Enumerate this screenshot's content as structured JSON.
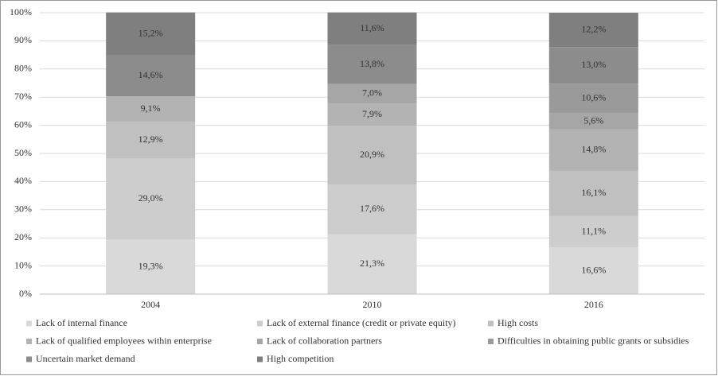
{
  "chart_data": {
    "type": "stacked_bar",
    "categories": [
      "2004",
      "2010",
      "2016"
    ],
    "series": [
      {
        "name": "Lack of internal finance",
        "color": "#d9d9d9",
        "values": [
          19.3,
          21.3,
          16.6
        ],
        "value_labels": [
          "19,3%",
          "21,3%",
          "16,6%"
        ]
      },
      {
        "name": "Lack of external finance (credit or private equity)",
        "color": "#cdcdcd",
        "values": [
          29.0,
          17.6,
          11.1
        ],
        "value_labels": [
          "29,0%",
          "17,6%",
          "11,1%"
        ]
      },
      {
        "name": "High costs",
        "color": "#c0c0c0",
        "values": [
          12.9,
          20.9,
          16.1
        ],
        "value_labels": [
          "12,9%",
          "20,9%",
          "16,1%"
        ]
      },
      {
        "name": "Lack of qualified employees within enterprise",
        "color": "#b3b3b3",
        "values": [
          9.1,
          7.9,
          14.8
        ],
        "value_labels": [
          "9,1%",
          "7,9%",
          "14,8%"
        ]
      },
      {
        "name": "Lack of collaboration partners",
        "color": "#a6a6a6",
        "values": [
          null,
          7.0,
          5.6
        ],
        "value_labels": [
          null,
          "7,0%",
          "5,6%"
        ]
      },
      {
        "name": "Difficulties in obtaining public grants or subsidies",
        "color": "#9a9a9a",
        "values": [
          null,
          null,
          10.6
        ],
        "value_labels": [
          null,
          null,
          "10,6%"
        ]
      },
      {
        "name": "Uncertain market demand",
        "color": "#8c8c8c",
        "values": [
          14.6,
          13.8,
          13.0
        ],
        "value_labels": [
          "14,6%",
          "13,8%",
          "13,0%"
        ]
      },
      {
        "name": "High competition",
        "color": "#7f7f7f",
        "values": [
          15.2,
          11.6,
          12.2
        ],
        "value_labels": [
          "15,2%",
          "11,6%",
          "12,2%"
        ]
      }
    ],
    "ylim": [
      0,
      100
    ],
    "yticks": [
      {
        "value": 0,
        "label": "0%"
      },
      {
        "value": 10,
        "label": "10%"
      },
      {
        "value": 20,
        "label": "20%"
      },
      {
        "value": 30,
        "label": "30%"
      },
      {
        "value": 40,
        "label": "40%"
      },
      {
        "value": 50,
        "label": "50%"
      },
      {
        "value": 60,
        "label": "60%"
      },
      {
        "value": 70,
        "label": "70%"
      },
      {
        "value": 80,
        "label": "80%"
      },
      {
        "value": 90,
        "label": "90%"
      },
      {
        "value": 100,
        "label": "100%"
      }
    ],
    "grid": true,
    "legend": "bottom"
  }
}
